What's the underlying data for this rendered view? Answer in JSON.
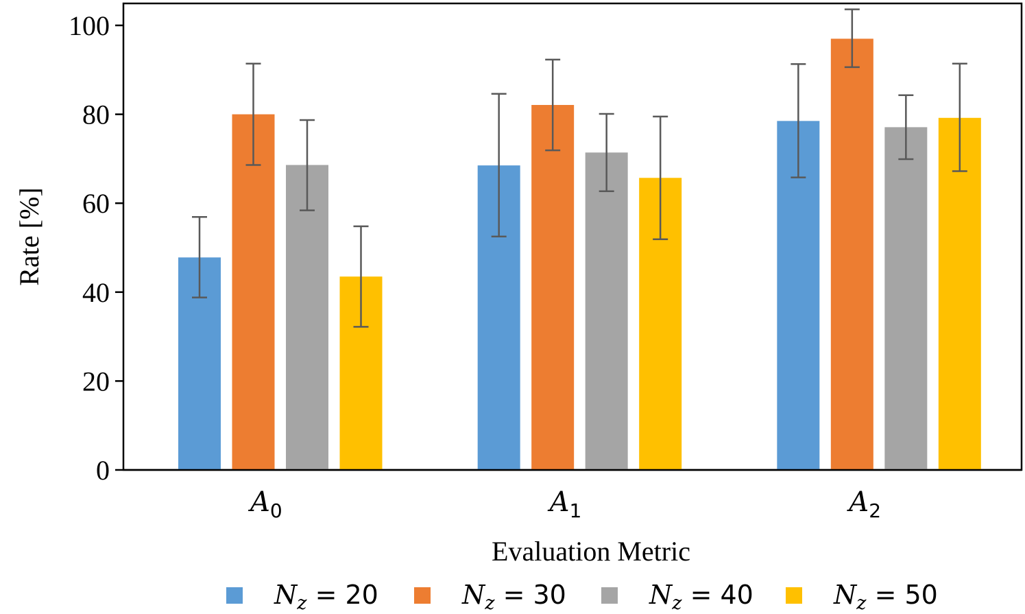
{
  "chart_data": {
    "type": "bar",
    "xlabel": "Evaluation Metric",
    "ylabel": "Rate [%]",
    "ylim": [
      0,
      100
    ],
    "yticks": [
      "0",
      "20",
      "40",
      "60",
      "80",
      "100"
    ],
    "categories": [
      {
        "base": "A",
        "sub": "0"
      },
      {
        "base": "A",
        "sub": "1"
      },
      {
        "base": "A",
        "sub": "2"
      }
    ],
    "series": [
      {
        "var": "N",
        "sub": "z",
        "rest": " = 20",
        "color": "#5b9bd5",
        "values": [
          47.8,
          68.5,
          78.5
        ],
        "err_low": [
          38.8,
          52.5,
          65.8
        ],
        "err_high": [
          56.9,
          84.6,
          91.3
        ]
      },
      {
        "var": "N",
        "sub": "z",
        "rest": " = 30",
        "color": "#ed7d31",
        "values": [
          80.0,
          82.1,
          97.0
        ],
        "err_low": [
          68.6,
          71.9,
          90.6
        ],
        "err_high": [
          91.4,
          92.3,
          103.6
        ]
      },
      {
        "var": "N",
        "sub": "z",
        "rest": " = 40",
        "color": "#a5a5a5",
        "values": [
          68.6,
          71.4,
          77.1
        ],
        "err_low": [
          58.4,
          62.7,
          69.9
        ],
        "err_high": [
          78.7,
          80.1,
          84.3
        ]
      },
      {
        "var": "N",
        "sub": "z",
        "rest": " = 50",
        "color": "#ffc000",
        "values": [
          43.5,
          65.7,
          79.2
        ],
        "err_low": [
          32.2,
          51.9,
          67.2
        ],
        "err_high": [
          54.8,
          79.5,
          91.4
        ]
      }
    ],
    "grid": false,
    "legend_position": "bottom"
  }
}
